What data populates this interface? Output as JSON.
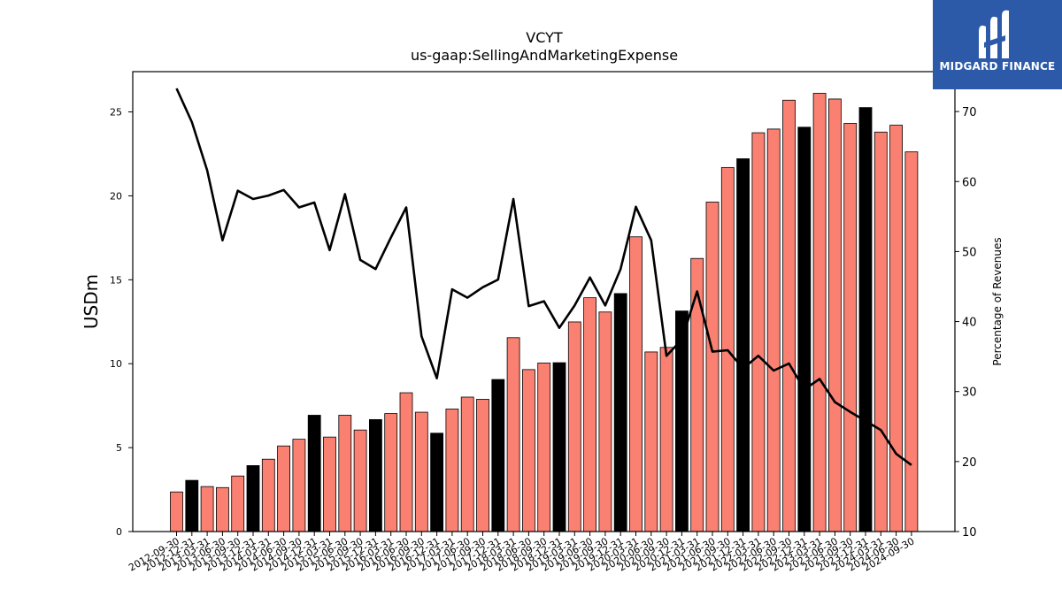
{
  "logo": {
    "text": "MIDGARD FINANCE"
  },
  "chart_data": {
    "type": "bar",
    "title": "VCYT",
    "subtitle": "us-gaap:SellingAndMarketingExpense",
    "ylabel": "USDm",
    "y2label": "Percentage of Revenues",
    "ylim": [
      0,
      27.4
    ],
    "y2lim": [
      10,
      75.7
    ],
    "yticks": [
      0,
      5,
      10,
      15,
      20,
      25
    ],
    "y2ticks": [
      10,
      20,
      30,
      40,
      50,
      60,
      70
    ],
    "categories": [
      "2012-09-30",
      "2012-12-31",
      "2013-03-31",
      "2013-06-30",
      "2013-09-30",
      "2013-12-31",
      "2014-03-31",
      "2014-06-30",
      "2014-09-30",
      "2014-12-31",
      "2015-03-31",
      "2015-06-30",
      "2015-09-30",
      "2015-12-31",
      "2016-03-31",
      "2016-06-30",
      "2016-09-30",
      "2016-12-31",
      "2017-03-31",
      "2017-06-30",
      "2017-09-30",
      "2017-12-31",
      "2018-03-31",
      "2018-06-30",
      "2018-09-30",
      "2018-12-31",
      "2019-03-31",
      "2019-06-30",
      "2019-09-30",
      "2019-12-31",
      "2020-03-31",
      "2020-06-30",
      "2020-09-30",
      "2020-12-31",
      "2021-03-31",
      "2021-06-30",
      "2021-09-30",
      "2021-12-31",
      "2022-03-31",
      "2022-06-30",
      "2022-09-30",
      "2022-12-31",
      "2023-03-31",
      "2023-06-30",
      "2023-09-30",
      "2023-12-31",
      "2024-03-31",
      "2024-06-30",
      "2024-09-30"
    ],
    "values": [
      2.36,
      3.05,
      2.68,
      2.62,
      3.31,
      3.93,
      4.31,
      5.1,
      5.5,
      6.93,
      5.63,
      6.93,
      6.05,
      6.67,
      7.03,
      8.27,
      7.11,
      5.86,
      7.3,
      8.01,
      7.88,
      9.06,
      11.55,
      9.65,
      10.04,
      10.06,
      12.49,
      13.93,
      13.08,
      14.18,
      17.56,
      10.7,
      10.97,
      13.14,
      16.27,
      19.63,
      21.69,
      22.21,
      23.76,
      23.98,
      25.7,
      24.09,
      26.11,
      25.77,
      24.32,
      25.26,
      23.8,
      24.21,
      22.62
    ],
    "highlight": [
      false,
      true,
      false,
      false,
      false,
      true,
      false,
      false,
      false,
      true,
      false,
      false,
      false,
      true,
      false,
      false,
      false,
      true,
      false,
      false,
      false,
      true,
      false,
      false,
      false,
      true,
      false,
      false,
      false,
      true,
      false,
      false,
      false,
      true,
      false,
      false,
      false,
      true,
      false,
      false,
      false,
      true,
      false,
      false,
      false,
      true,
      false,
      false,
      false
    ],
    "series": [
      {
        "values": [
          73.3,
          68.5,
          61.6,
          51.6,
          58.7,
          57.5,
          58.0,
          58.8,
          56.3,
          57.0,
          50.2,
          58.2,
          48.8,
          47.5,
          52.0,
          56.3,
          37.9,
          31.9,
          44.6,
          43.4,
          44.9,
          46.0,
          57.5,
          42.2,
          42.9,
          39.1,
          42.3,
          46.3,
          42.3,
          47.5,
          56.4,
          51.6,
          35.1,
          37.4,
          44.3,
          35.7,
          35.9,
          33.3,
          35.1,
          33.0,
          34.0,
          30.3,
          31.8,
          28.5,
          27.1,
          25.8,
          24.5,
          21.1,
          19.5
        ]
      }
    ],
    "colors": {
      "bar": "#fa8072",
      "bar_highlight": "#000000",
      "line": "#000000",
      "edge": "#000000"
    }
  }
}
